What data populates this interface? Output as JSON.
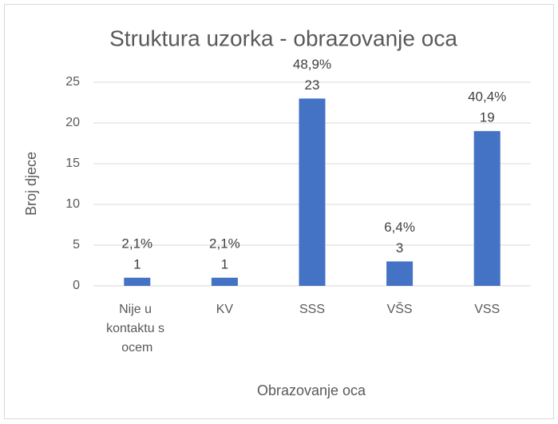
{
  "chart_data": {
    "type": "bar",
    "title": "Struktura uzorka - obrazovanje oca",
    "x_label": "Obrazovanje oca",
    "y_label": "Broj djece",
    "categories": [
      "Nije u kontaktu s ocem",
      "KV",
      "SSS",
      "VŠS",
      "VSS"
    ],
    "values": [
      1,
      1,
      23,
      3,
      19
    ],
    "percentages": [
      2.1,
      2.1,
      48.9,
      6.4,
      40.4
    ],
    "percentage_labels": [
      "2,1%",
      "2,1%",
      "48,9%",
      "6,4%",
      "40,4%"
    ],
    "color": "#4472c4",
    "ylim": [
      0,
      25
    ],
    "yticks": [
      0,
      5,
      10,
      15,
      20,
      25
    ],
    "grid": true
  }
}
